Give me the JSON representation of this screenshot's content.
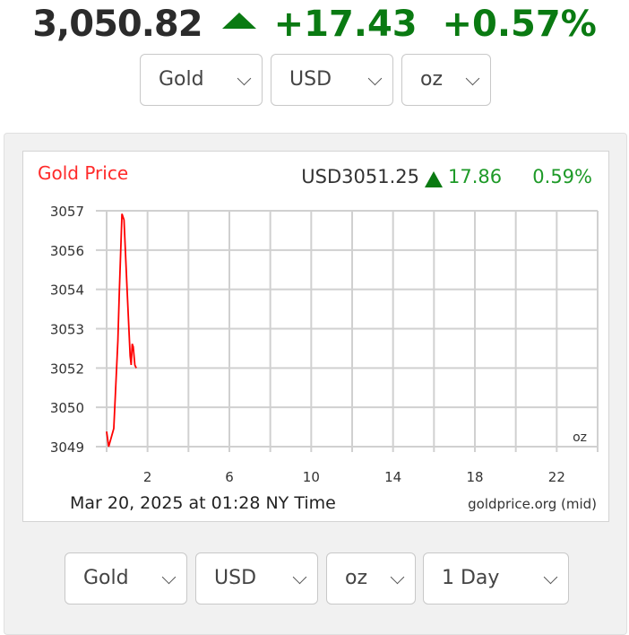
{
  "header": {
    "price": "3,050.82",
    "change": "+17.43",
    "change_pct": "+0.57%",
    "trend_icon": "triangle-up-icon",
    "up_color": "#0a7a12"
  },
  "top_selects": [
    {
      "value": "Gold"
    },
    {
      "value": "USD"
    },
    {
      "value": "oz"
    }
  ],
  "bottom_selects": [
    {
      "value": "Gold"
    },
    {
      "value": "USD"
    },
    {
      "value": "oz"
    },
    {
      "value": "1 Day"
    }
  ],
  "chart_data": {
    "type": "line",
    "title": "Gold Price",
    "quote": {
      "label": "USD3051.25",
      "change": "17.86",
      "change_pct": "0.59%"
    },
    "unit_label": "oz",
    "timestamp": "Mar 20, 2025 at 01:28 NY Time",
    "source": "goldprice.org (mid)",
    "x_ticks": [
      "2",
      "6",
      "10",
      "14",
      "18",
      "22"
    ],
    "y_ticks": [
      "3057",
      "3056",
      "3054",
      "3053",
      "3052",
      "3050",
      "3049"
    ],
    "xlim": [
      0,
      24
    ],
    "ylim": [
      3049.1,
      3056.9
    ],
    "grid": true,
    "line_color": "#ff0000",
    "x": [
      0,
      0.1,
      0.35,
      0.55,
      0.62,
      0.75,
      0.85,
      1.0,
      1.15,
      1.2,
      1.25,
      1.3,
      1.38,
      1.45
    ],
    "y": [
      3049.6,
      3049.1,
      3049.7,
      3052.6,
      3054.2,
      3056.8,
      3056.6,
      3054.3,
      3052.1,
      3051.8,
      3052.5,
      3052.4,
      3051.8,
      3051.7
    ]
  }
}
